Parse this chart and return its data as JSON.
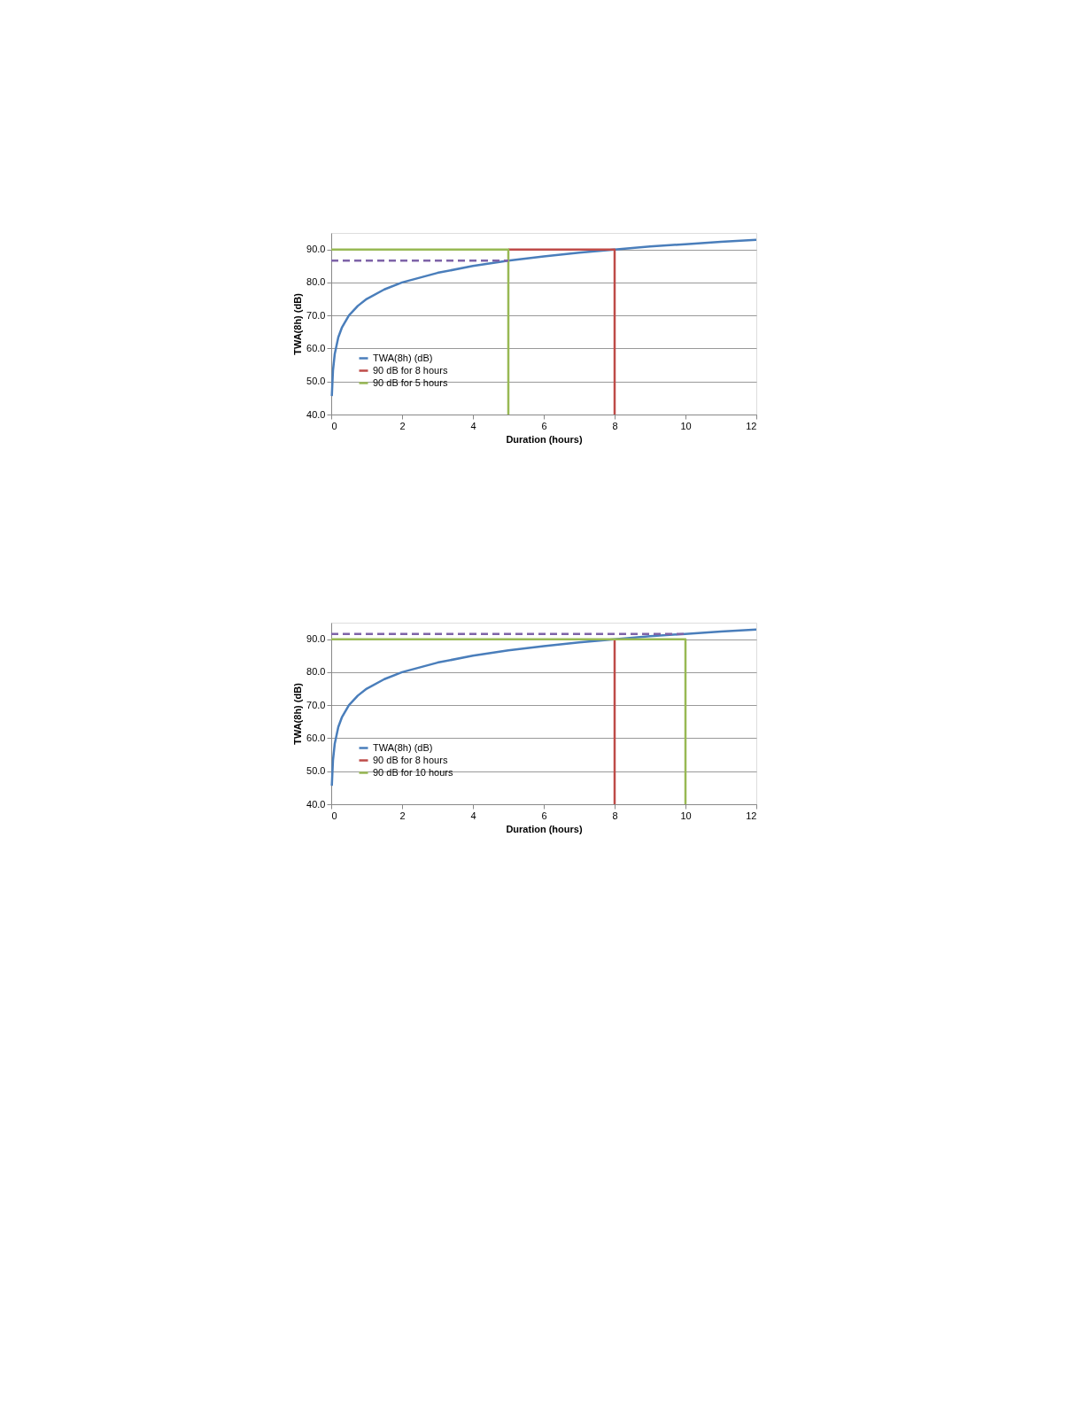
{
  "chart_data": [
    {
      "type": "line",
      "xlabel": "Duration (hours)",
      "ylabel": "TWA(8h) (dB)",
      "xlim": [
        0,
        12
      ],
      "xticks": [
        0,
        2,
        4,
        6,
        8,
        10,
        12
      ],
      "ylim": [
        40,
        95
      ],
      "yticks": [
        {
          "value": 40,
          "label": "40.0"
        },
        {
          "value": 50,
          "label": "50.0"
        },
        {
          "value": 60,
          "label": "60.0"
        },
        {
          "value": 70,
          "label": "70.0"
        },
        {
          "value": 80,
          "label": "80.0"
        },
        {
          "value": 90,
          "label": "90.0"
        }
      ],
      "grid": "y",
      "legend": "bottom left",
      "marker": "none",
      "series": [
        {
          "name": "TWA(8h) (dB)",
          "color": "#4a7ebb",
          "x": [
            0.017,
            0.05,
            0.1,
            0.2,
            0.3,
            0.5,
            0.75,
            1,
            1.5,
            2,
            3,
            4,
            5,
            6,
            7,
            8,
            9,
            10,
            11,
            12
          ],
          "values": [
            45.6,
            53.4,
            58.4,
            63.4,
            66.3,
            70.0,
            72.9,
            75.0,
            77.9,
            80.0,
            82.9,
            85.0,
            86.6,
            87.9,
            89.0,
            90.0,
            90.9,
            91.6,
            92.3,
            92.9
          ]
        },
        {
          "name": "90 dB for 8 hours",
          "color": "#be4b48",
          "x": [
            5,
            8,
            8
          ],
          "values": [
            90,
            90,
            40
          ]
        },
        {
          "name": "90 dB for 5 hours",
          "color": "#98b954",
          "x": [
            0,
            5,
            5
          ],
          "values": [
            90,
            90,
            40
          ]
        },
        {
          "color": "#7e63a8",
          "line_style": "dashed",
          "x": [
            0,
            5
          ],
          "values": [
            86.6,
            86.6
          ]
        }
      ]
    },
    {
      "type": "line",
      "xlabel": "Duration (hours)",
      "ylabel": "TWA(8h) (dB)",
      "xlim": [
        0,
        12
      ],
      "xticks": [
        0,
        2,
        4,
        6,
        8,
        10,
        12
      ],
      "ylim": [
        40,
        95
      ],
      "yticks": [
        {
          "value": 40,
          "label": "40.0"
        },
        {
          "value": 50,
          "label": "50.0"
        },
        {
          "value": 60,
          "label": "60.0"
        },
        {
          "value": 70,
          "label": "70.0"
        },
        {
          "value": 80,
          "label": "80.0"
        },
        {
          "value": 90,
          "label": "90.0"
        }
      ],
      "grid": "y",
      "legend": "bottom left",
      "marker": "none",
      "series": [
        {
          "name": "TWA(8h) (dB)",
          "color": "#4a7ebb",
          "x": [
            0.017,
            0.05,
            0.1,
            0.2,
            0.3,
            0.5,
            0.75,
            1,
            1.5,
            2,
            3,
            4,
            5,
            6,
            7,
            8,
            9,
            10,
            11,
            12
          ],
          "values": [
            45.6,
            53.4,
            58.4,
            63.4,
            66.3,
            70.0,
            72.9,
            75.0,
            77.9,
            80.0,
            82.9,
            85.0,
            86.6,
            87.9,
            89.0,
            90.0,
            90.9,
            91.6,
            92.3,
            92.9
          ]
        },
        {
          "name": "90 dB for 8 hours",
          "color": "#be4b48",
          "x": [
            8,
            8
          ],
          "values": [
            90,
            40
          ]
        },
        {
          "name": "90 dB for 10 hours",
          "color": "#98b954",
          "x": [
            0,
            10,
            10
          ],
          "values": [
            90,
            90,
            40
          ]
        },
        {
          "color": "#7e63a8",
          "line_style": "dashed",
          "x": [
            0,
            10
          ],
          "values": [
            91.6,
            91.6
          ]
        }
      ]
    }
  ]
}
